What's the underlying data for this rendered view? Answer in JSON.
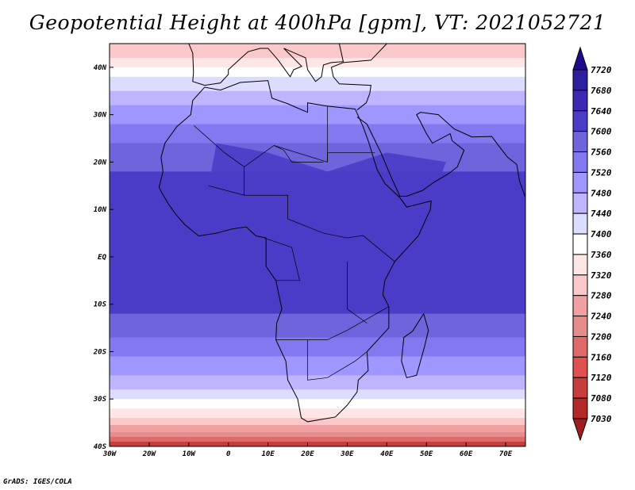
{
  "title": "Geopotential Height at 400hPa [gpm], VT: 2021052721",
  "credit": "GrADS: IGES/COLA",
  "chart_data": {
    "type": "heatmap",
    "title": "Geopotential Height at 400hPa [gpm], VT: 2021052721",
    "variable": "Geopotential Height",
    "units": "gpm",
    "level": "400hPa",
    "valid_time": "2021052721",
    "lon_range": [
      -30,
      75
    ],
    "lat_range": [
      -40,
      45
    ],
    "lon_ticks": [
      "30W",
      "20W",
      "10W",
      "0",
      "10E",
      "20E",
      "30E",
      "40E",
      "50E",
      "60E",
      "70E"
    ],
    "lat_ticks": [
      "40N",
      "30N",
      "20N",
      "10N",
      "EQ",
      "10S",
      "20S",
      "30S",
      "40S"
    ],
    "colorbar": {
      "levels": [
        "7720",
        "7680",
        "7640",
        "7600",
        "7560",
        "7520",
        "7480",
        "7440",
        "7400",
        "7360",
        "7320",
        "7280",
        "7240",
        "7200",
        "7160",
        "7120",
        "7080",
        "7030"
      ],
      "colors": [
        "#2d1ea0",
        "#3c28b4",
        "#4b3cc8",
        "#6e64dc",
        "#8278f0",
        "#a096ff",
        "#beb4ff",
        "#dcdcff",
        "#ffffff",
        "#ffe6e6",
        "#fac8c8",
        "#f0a0a0",
        "#e68c8c",
        "#e06a6a",
        "#e05050",
        "#c83c3c",
        "#b42828"
      ],
      "over_color": "#1e0a8c",
      "under_color": "#a01e1e"
    },
    "lat_bands": [
      {
        "lat": [
          42,
          45
        ],
        "color": "#fac8c8"
      },
      {
        "lat": [
          40,
          42
        ],
        "color": "#ffe6e6"
      },
      {
        "lat": [
          38,
          40
        ],
        "color": "#ffffff"
      },
      {
        "lat": [
          35,
          38
        ],
        "color": "#dcdcff"
      },
      {
        "lat": [
          32,
          35
        ],
        "color": "#beb4ff"
      },
      {
        "lat": [
          28,
          32
        ],
        "color": "#a096ff"
      },
      {
        "lat": [
          24,
          28
        ],
        "color": "#8278f0"
      },
      {
        "lat": [
          18,
          24
        ],
        "color": "#6e64dc"
      },
      {
        "lat": [
          -12,
          18
        ],
        "color": "#4b3cc8"
      },
      {
        "lat": [
          -17,
          -12
        ],
        "color": "#6e64dc"
      },
      {
        "lat": [
          -21,
          -17
        ],
        "color": "#8278f0"
      },
      {
        "lat": [
          -25,
          -21
        ],
        "color": "#a096ff"
      },
      {
        "lat": [
          -28,
          -25
        ],
        "color": "#beb4ff"
      },
      {
        "lat": [
          -30,
          -28
        ],
        "color": "#dcdcff"
      },
      {
        "lat": [
          -32,
          -30
        ],
        "color": "#ffffff"
      },
      {
        "lat": [
          -34,
          -32
        ],
        "color": "#ffe6e6"
      },
      {
        "lat": [
          -35.5,
          -34
        ],
        "color": "#fac8c8"
      },
      {
        "lat": [
          -37,
          -35.5
        ],
        "color": "#f0a0a0"
      },
      {
        "lat": [
          -38,
          -37
        ],
        "color": "#e68c8c"
      },
      {
        "lat": [
          -39,
          -38
        ],
        "color": "#e06a6a"
      },
      {
        "lat": [
          -40,
          -39
        ],
        "color": "#c83c3c"
      }
    ]
  }
}
